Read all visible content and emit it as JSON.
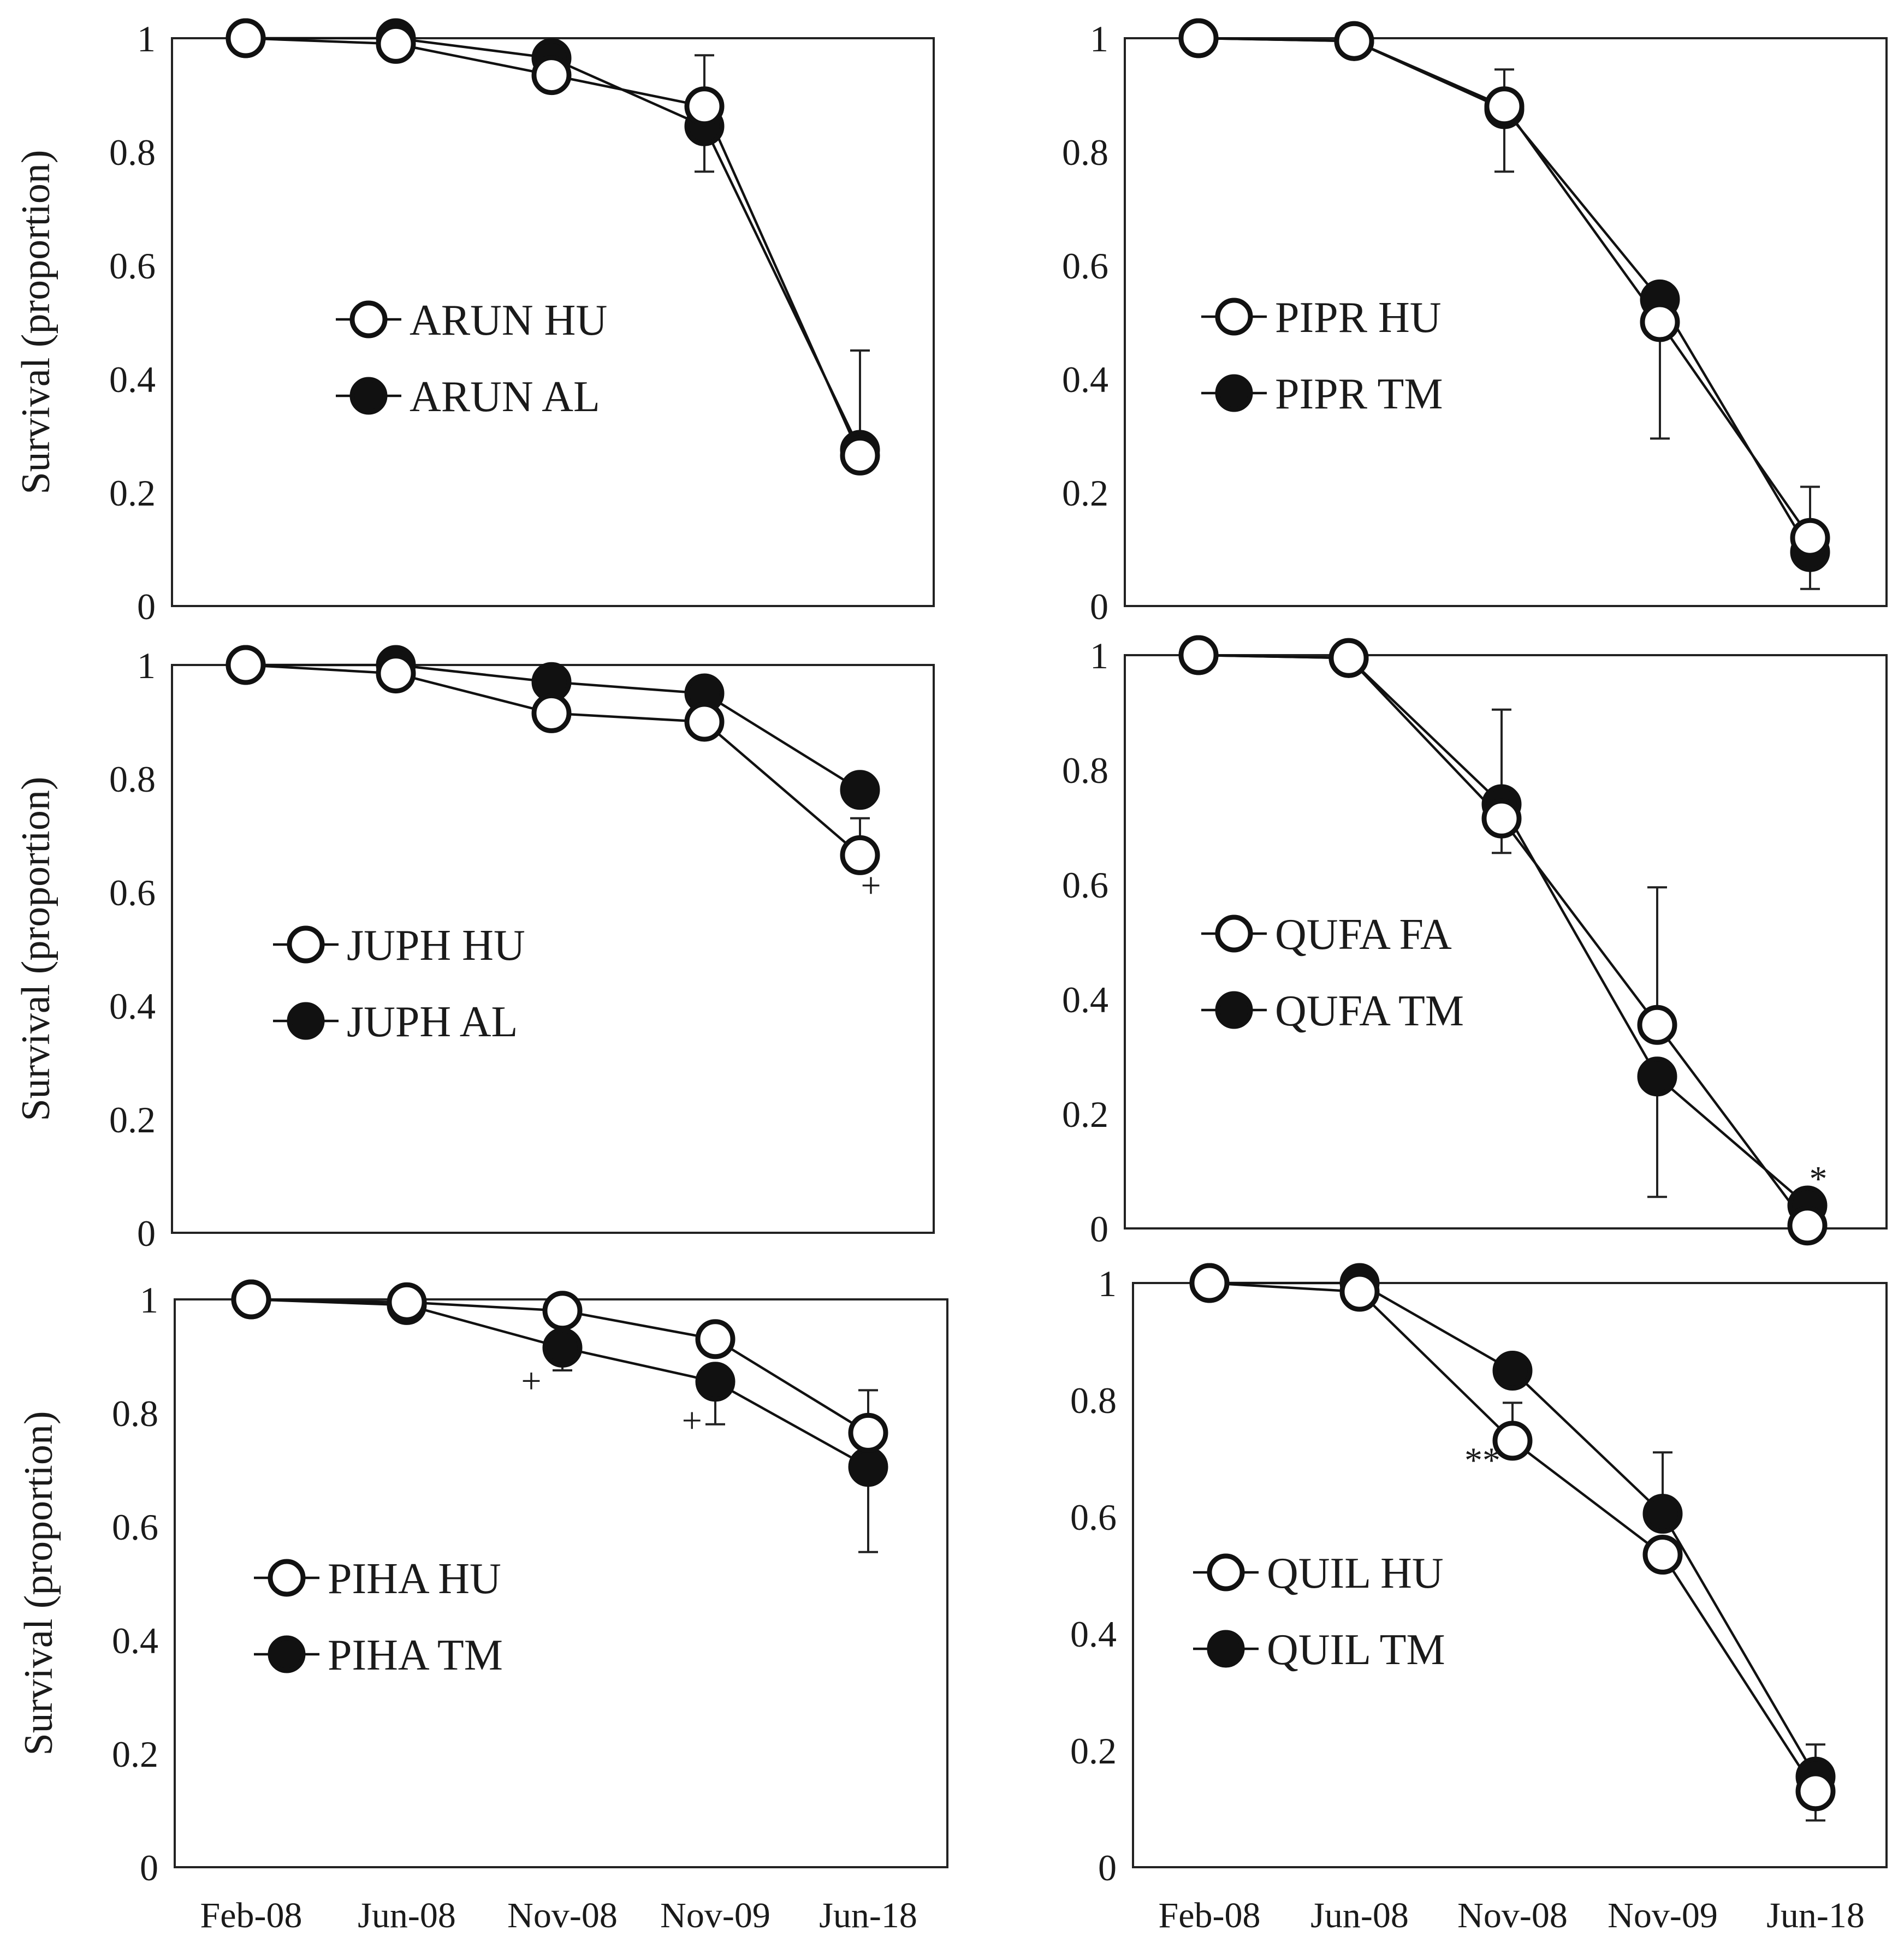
{
  "chart_data": [
    {
      "type": "line",
      "ylabel": "Survival  (proportion)",
      "ylim": [
        0,
        1
      ],
      "yticks": [
        "0",
        "0.2",
        "0.4",
        "0.6",
        "0.8",
        "1"
      ],
      "categories": [
        "Feb-08",
        "Jun-08",
        "Nov-08",
        "Nov-09",
        "Jun-18"
      ],
      "series": [
        {
          "name": "ARUN HU",
          "marker": "open",
          "values": [
            1.0,
            0.99,
            0.935,
            0.88,
            0.265
          ]
        },
        {
          "name": "ARUN AL",
          "marker": "filled",
          "values": [
            1.0,
            1.0,
            0.965,
            0.845,
            0.275
          ]
        }
      ],
      "error_bars": [
        {
          "category": "Nov-09",
          "high": 0.97,
          "low": 0.765
        },
        {
          "category": "Jun-18",
          "high": 0.45
        }
      ],
      "annotations": []
    },
    {
      "type": "line",
      "ylabel": "",
      "ylim": [
        0,
        1
      ],
      "yticks": [
        "0",
        "0.2",
        "0.4",
        "0.6",
        "0.8",
        "1"
      ],
      "categories": [
        "Feb-08",
        "Jun-08",
        "Nov-08",
        "Nov-09",
        "Jun-18"
      ],
      "series": [
        {
          "name": "PIPR HU",
          "marker": "open",
          "values": [
            1.0,
            0.995,
            0.88,
            0.5,
            0.12
          ]
        },
        {
          "name": "PIPR TM",
          "marker": "filled",
          "values": [
            1.0,
            0.995,
            0.875,
            0.54,
            0.095
          ]
        }
      ],
      "error_bars": [
        {
          "category": "Nov-08",
          "high": 0.945,
          "low": 0.765
        },
        {
          "category": "Nov-09",
          "low": 0.295
        },
        {
          "category": "Jun-18",
          "high": 0.21,
          "low": 0.03
        }
      ],
      "annotations": []
    },
    {
      "type": "line",
      "ylabel": "Survival  (proportion)",
      "ylim": [
        0,
        1
      ],
      "yticks": [
        "0",
        "0.2",
        "0.4",
        "0.6",
        "0.8",
        "1"
      ],
      "categories": [
        "Feb-08",
        "Jun-08",
        "Nov-08",
        "Nov-09",
        "Jun-18"
      ],
      "series": [
        {
          "name": "JUPH HU",
          "marker": "open",
          "values": [
            1.0,
            0.985,
            0.915,
            0.9,
            0.665
          ]
        },
        {
          "name": "JUPH AL",
          "marker": "filled",
          "values": [
            1.0,
            1.0,
            0.97,
            0.95,
            0.78
          ]
        }
      ],
      "error_bars": [
        {
          "category": "Jun-18",
          "low": 0.73
        }
      ],
      "annotations": [
        {
          "text": "+",
          "category": "Jun-18",
          "y": 0.61
        }
      ]
    },
    {
      "type": "line",
      "ylabel": "",
      "ylim": [
        0,
        1
      ],
      "yticks": [
        "0",
        "0.2",
        "0.4",
        "0.6",
        "0.8",
        "1"
      ],
      "categories": [
        "Feb-08",
        "Jun-08",
        "Nov-08",
        "Nov-09",
        "Jun-18"
      ],
      "series": [
        {
          "name": "QUFA FA",
          "marker": "open",
          "values": [
            1.0,
            0.995,
            0.715,
            0.355,
            0.005
          ]
        },
        {
          "name": "QUFA TM",
          "marker": "filled",
          "values": [
            1.0,
            0.995,
            0.74,
            0.265,
            0.04
          ]
        }
      ],
      "error_bars": [
        {
          "category": "Nov-08",
          "high": 0.905,
          "low": 0.655
        },
        {
          "category": "Nov-09",
          "high": 0.595,
          "low": 0.055
        }
      ],
      "annotations": [
        {
          "text": "*",
          "category": "Jun-18",
          "y": 0.085
        }
      ]
    },
    {
      "type": "line",
      "ylabel": "Survival  (proportion)",
      "ylim": [
        0,
        1
      ],
      "yticks": [
        "0",
        "0.2",
        "0.4",
        "0.6",
        "0.8",
        "1"
      ],
      "categories": [
        "Feb-08",
        "Jun-08",
        "Nov-08",
        "Nov-09",
        "Jun-18"
      ],
      "xtick_labels": [
        "Feb-08",
        "Jun-08",
        "Nov-08",
        "Nov-09",
        "Jun-18"
      ],
      "series": [
        {
          "name": "PIHA HU",
          "marker": "open",
          "values": [
            1.0,
            0.995,
            0.98,
            0.93,
            0.765
          ]
        },
        {
          "name": "PIHA TM",
          "marker": "filled",
          "values": [
            1.0,
            0.99,
            0.915,
            0.855,
            0.705
          ]
        }
      ],
      "error_bars": [
        {
          "category": "Nov-08",
          "low": 0.875
        },
        {
          "category": "Nov-09",
          "low": 0.78
        },
        {
          "category": "Jun-18",
          "high": 0.84,
          "low": 0.555
        }
      ],
      "annotations": [
        {
          "text": "+",
          "category": "Nov-08",
          "y": 0.855,
          "dx": -0.2
        },
        {
          "text": "+",
          "category": "Nov-09",
          "y": 0.785,
          "dx": -0.15
        }
      ]
    },
    {
      "type": "line",
      "ylabel": "",
      "ylim": [
        0,
        1
      ],
      "yticks": [
        "0",
        "0.2",
        "0.4",
        "0.6",
        "0.8",
        "1"
      ],
      "categories": [
        "Feb-08",
        "Jun-08",
        "Nov-08",
        "Nov-09",
        "Jun-18"
      ],
      "xtick_labels": [
        "Feb-08",
        "Jun-08",
        "Nov-08",
        "Nov-09",
        "Jun-18"
      ],
      "series": [
        {
          "name": "QUIL HU",
          "marker": "open",
          "values": [
            1.0,
            0.985,
            0.73,
            0.535,
            0.13
          ]
        },
        {
          "name": "QUIL TM",
          "marker": "filled",
          "values": [
            1.0,
            1.0,
            0.85,
            0.605,
            0.155
          ]
        }
      ],
      "error_bars": [
        {
          "category": "Nov-08",
          "low": 0.795
        },
        {
          "category": "Nov-09",
          "high": 0.71
        },
        {
          "category": "Jun-18",
          "high": 0.21,
          "low": 0.08
        }
      ],
      "annotations": [
        {
          "text": "**",
          "category": "Nov-08",
          "y": 0.695,
          "dx": -0.2
        }
      ]
    }
  ]
}
